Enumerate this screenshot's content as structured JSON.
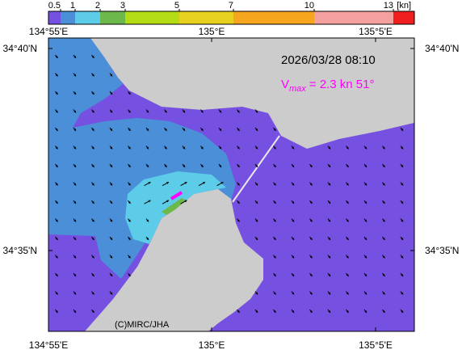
{
  "colorbar": {
    "labels": [
      "0.5",
      "1",
      "2",
      "3",
      "5",
      "7",
      "10",
      "13",
      "[kn]"
    ],
    "colors": [
      "#7650e0",
      "#4a8fd8",
      "#5ccce8",
      "#6cb84a",
      "#b4dc14",
      "#e6d21e",
      "#f5a51e",
      "#f5a0a0",
      "#f01e1e"
    ]
  },
  "axes": {
    "top": [
      "134°55'E",
      "135°E",
      "135°5'E"
    ],
    "bottom": [
      "134°55'E",
      "135°E",
      "135°5'E"
    ],
    "left": [
      "34°40'N",
      "34°35'N"
    ],
    "right": [
      "34°40'N",
      "34°35'N"
    ]
  },
  "timestamp": "2026/03/28 08:10",
  "vmax": {
    "symbol": "V",
    "subscript": "max",
    "text": "= 2.3 kn 51°"
  },
  "credit": "(C)MIRC/JHA"
}
